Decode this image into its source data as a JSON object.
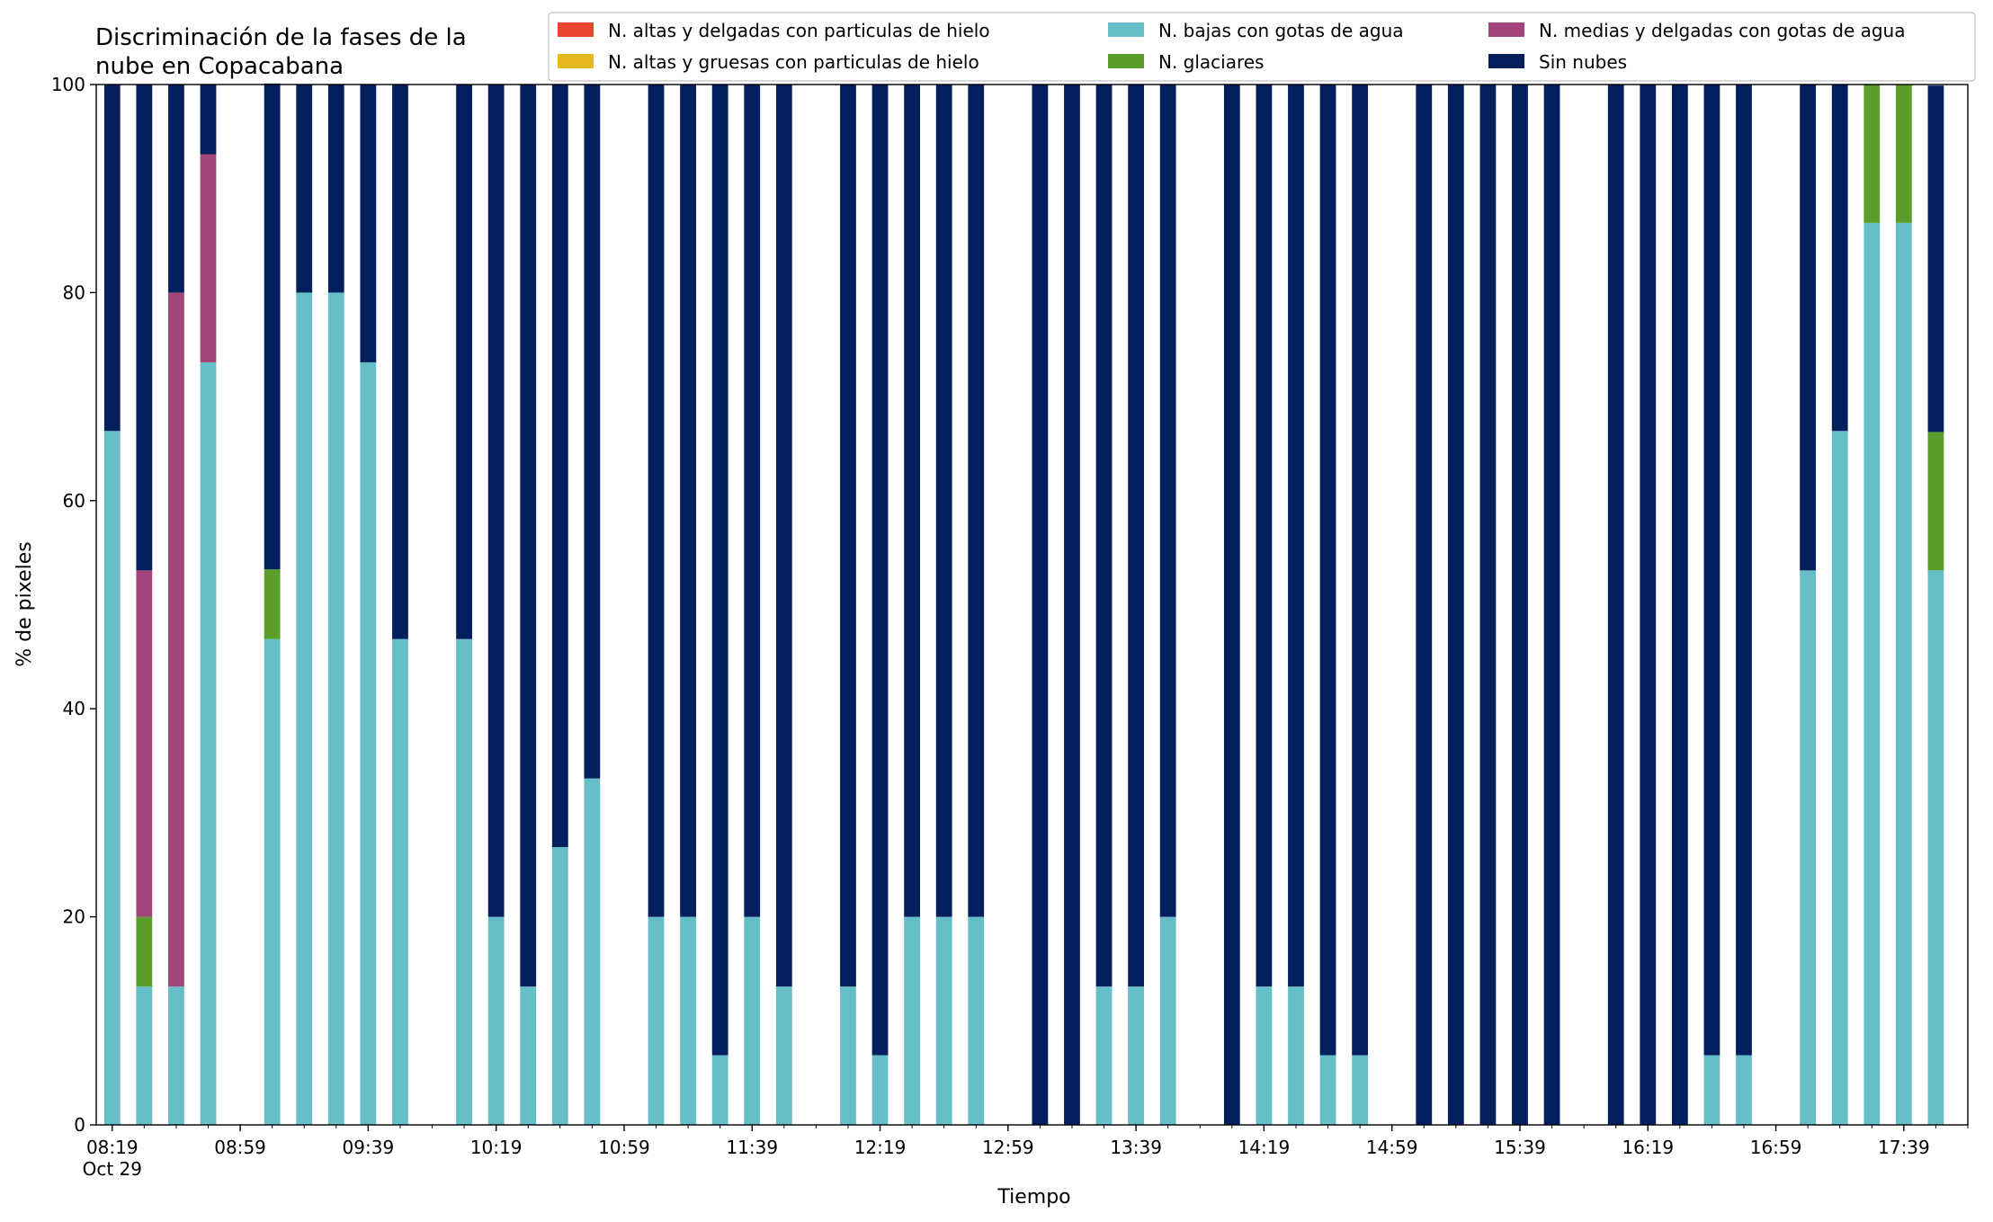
{
  "chart_data": {
    "type": "bar",
    "stacked": true,
    "title_lines": [
      "Discriminación de la fases de la",
      "nube en Copacabana"
    ],
    "xlabel": "Tiempo",
    "ylabel": "% de pixeles",
    "ylim": [
      0,
      100
    ],
    "yticks": [
      0,
      20,
      40,
      60,
      80,
      100
    ],
    "x_tick_labels": [
      "08:19",
      "08:59",
      "09:39",
      "10:19",
      "10:59",
      "11:39",
      "12:19",
      "12:59",
      "13:39",
      "14:19",
      "14:59",
      "15:39",
      "16:19",
      "16:59",
      "17:39"
    ],
    "x_date_label": "Oct 29",
    "time_start": "08:19",
    "time_end": "17:59",
    "slot_minutes": 10,
    "bar_width_minutes": 5,
    "grid": false,
    "legend_position": "top-right",
    "times": [
      "08:19",
      "08:29",
      "08:39",
      "08:49",
      "09:09",
      "09:19",
      "09:29",
      "09:39",
      "09:49",
      "10:09",
      "10:19",
      "10:29",
      "10:39",
      "10:49",
      "11:09",
      "11:19",
      "11:29",
      "11:39",
      "11:49",
      "12:09",
      "12:19",
      "12:29",
      "12:39",
      "12:49",
      "13:09",
      "13:19",
      "13:29",
      "13:39",
      "13:49",
      "14:09",
      "14:19",
      "14:29",
      "14:39",
      "14:49",
      "15:09",
      "15:19",
      "15:29",
      "15:39",
      "15:49",
      "16:09",
      "16:19",
      "16:29",
      "16:39",
      "16:49",
      "17:09",
      "17:19",
      "17:29",
      "17:39",
      "17:49"
    ],
    "series": [
      {
        "name": "N. altas y delgadas con particulas de hielo",
        "color": "#e8472d",
        "values": [
          0,
          0,
          0,
          0,
          0,
          0,
          0,
          0,
          0,
          0,
          0,
          0,
          0,
          0,
          0,
          0,
          0,
          0,
          0,
          0,
          0,
          0,
          0,
          0,
          0,
          0,
          0,
          0,
          0,
          0,
          0,
          0,
          0,
          0,
          0,
          0,
          0,
          0,
          0,
          0,
          0,
          0,
          0,
          0,
          0,
          0,
          0,
          0,
          0
        ]
      },
      {
        "name": "N. altas y gruesas con particulas de hielo",
        "color": "#e6b81c",
        "values": [
          0,
          0,
          0,
          0,
          0,
          0,
          0,
          0,
          0,
          0,
          0,
          0,
          0,
          0,
          0,
          0,
          0,
          0,
          0,
          0,
          0,
          0,
          0,
          0,
          0,
          0,
          0,
          0,
          0,
          0,
          0,
          0,
          0,
          0,
          0,
          0,
          0,
          0,
          0,
          0,
          0,
          0,
          0,
          0,
          0,
          0,
          0,
          0,
          0
        ]
      },
      {
        "name": "N. bajas con gotas de agua",
        "color": "#66bec9",
        "values": [
          66.7,
          13.3,
          13.3,
          73.3,
          46.7,
          80,
          80,
          73.3,
          46.7,
          46.7,
          20,
          13.3,
          26.7,
          33.3,
          20,
          20,
          6.7,
          20,
          13.3,
          13.3,
          6.7,
          20,
          20,
          20,
          0,
          0,
          13.3,
          13.3,
          20,
          0,
          13.3,
          13.3,
          6.7,
          6.7,
          0,
          0,
          0,
          0,
          0,
          0,
          0,
          0,
          6.7,
          6.7,
          53.3,
          66.7,
          86.7,
          86.7,
          53.3
        ]
      },
      {
        "name": "N. glaciares",
        "color": "#5c9e2c",
        "values": [
          0,
          6.7,
          0,
          0,
          6.7,
          0,
          0,
          0,
          0,
          0,
          0,
          0,
          0,
          0,
          0,
          0,
          0,
          0,
          0,
          0,
          0,
          0,
          0,
          0,
          0,
          0,
          0,
          0,
          0,
          0,
          0,
          0,
          0,
          0,
          0,
          0,
          0,
          0,
          0,
          0,
          0,
          0,
          0,
          0,
          0,
          0,
          13.3,
          13.3,
          13.3
        ]
      },
      {
        "name": "N. medias y delgadas con gotas de agua",
        "color": "#a3447b",
        "values": [
          0,
          33.3,
          66.7,
          20,
          0,
          0,
          0,
          0,
          0,
          0,
          0,
          0,
          0,
          0,
          0,
          0,
          0,
          0,
          0,
          0,
          0,
          0,
          0,
          0,
          0,
          0,
          0,
          0,
          0,
          0,
          0,
          0,
          0,
          0,
          0,
          0,
          0,
          0,
          0,
          0,
          0,
          0,
          0,
          0,
          0,
          0,
          0,
          0,
          0
        ]
      },
      {
        "name": "Sin nubes",
        "color": "#031f5e",
        "values": [
          33.3,
          46.7,
          20,
          6.7,
          46.7,
          20,
          20,
          26.7,
          53.3,
          53.3,
          80,
          86.7,
          73.3,
          66.7,
          80,
          80,
          93.3,
          80,
          86.7,
          86.7,
          93.3,
          80,
          80,
          80,
          100,
          100,
          86.7,
          86.7,
          80,
          100,
          86.7,
          86.7,
          93.3,
          93.3,
          100,
          100,
          100,
          100,
          100,
          100,
          100,
          100,
          93.3,
          93.3,
          46.7,
          33.3,
          0,
          0,
          33.3
        ]
      }
    ]
  }
}
